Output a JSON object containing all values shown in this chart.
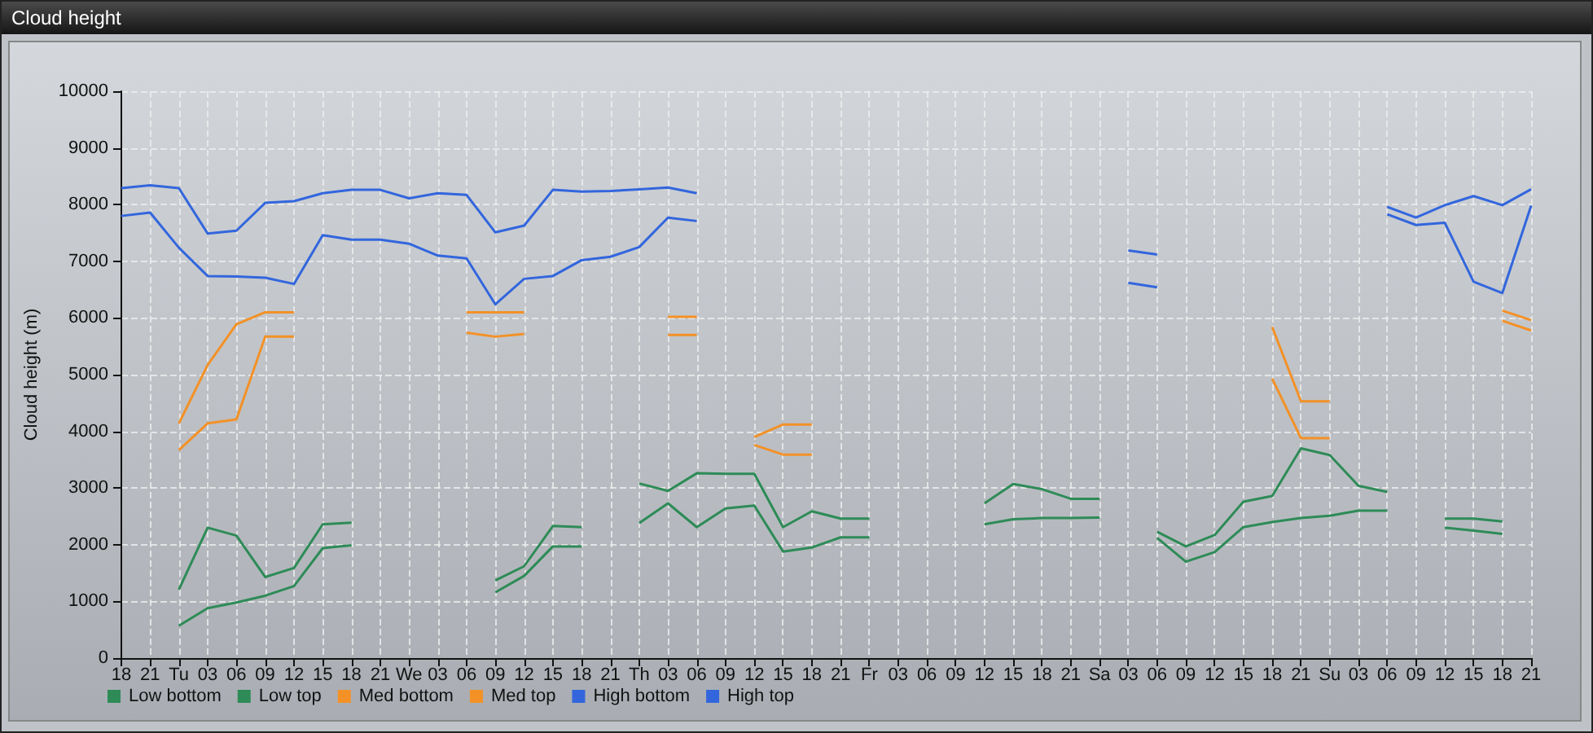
{
  "chart_data": {
    "type": "line",
    "title": "Cloud height",
    "ylabel": "Cloud height (m)",
    "categories": [
      "18",
      "21",
      "Tu",
      "03",
      "06",
      "09",
      "12",
      "15",
      "18",
      "21",
      "We",
      "03",
      "06",
      "09",
      "12",
      "15",
      "18",
      "21",
      "Th",
      "03",
      "06",
      "09",
      "12",
      "15",
      "18",
      "21",
      "Fr",
      "03",
      "06",
      "09",
      "12",
      "15",
      "18",
      "21",
      "Sa",
      "03",
      "06",
      "09",
      "12",
      "15",
      "18",
      "21",
      "Su",
      "03",
      "06",
      "09",
      "12",
      "15",
      "18",
      "21"
    ],
    "series": [
      {
        "name": "Low bottom",
        "color": "#2e8b57",
        "values": [
          null,
          null,
          570,
          880,
          980,
          1100,
          1270,
          1940,
          1990,
          null,
          null,
          null,
          null,
          1160,
          1450,
          1970,
          1970,
          null,
          2380,
          2730,
          2310,
          2640,
          2690,
          1880,
          1950,
          2130,
          2130,
          null,
          null,
          null,
          2360,
          2450,
          2470,
          2470,
          2480,
          null,
          2120,
          1700,
          1870,
          2310,
          2400,
          2470,
          2510,
          2600,
          2600,
          null,
          2300,
          2250,
          2190,
          null
        ]
      },
      {
        "name": "Low top",
        "color": "#2e8b57",
        "values": [
          null,
          null,
          1210,
          2300,
          2160,
          1430,
          1590,
          2360,
          2390,
          null,
          null,
          null,
          null,
          1370,
          1620,
          2330,
          2310,
          null,
          3080,
          2950,
          3260,
          3250,
          3250,
          2310,
          2590,
          2460,
          2460,
          null,
          null,
          null,
          2730,
          3070,
          2980,
          2810,
          2810,
          null,
          2230,
          1970,
          2170,
          2760,
          2860,
          3700,
          3580,
          3040,
          2930,
          null,
          2460,
          2460,
          2410,
          null
        ]
      },
      {
        "name": "Med bottom",
        "color": "#f39127",
        "values": [
          null,
          null,
          3670,
          4140,
          4210,
          5670,
          5670,
          null,
          null,
          null,
          null,
          null,
          5740,
          5670,
          5720,
          null,
          null,
          null,
          null,
          5700,
          5700,
          null,
          3760,
          3590,
          3590,
          null,
          null,
          null,
          null,
          null,
          null,
          null,
          null,
          null,
          null,
          null,
          null,
          null,
          null,
          null,
          4930,
          3880,
          3880,
          null,
          null,
          null,
          null,
          null,
          5950,
          5780
        ]
      },
      {
        "name": "Med top",
        "color": "#f39127",
        "values": [
          null,
          null,
          4140,
          5170,
          5890,
          6100,
          6100,
          null,
          null,
          null,
          null,
          null,
          6100,
          6100,
          6100,
          null,
          null,
          null,
          null,
          6020,
          6020,
          null,
          3900,
          4120,
          4120,
          null,
          null,
          null,
          null,
          null,
          null,
          null,
          null,
          null,
          null,
          null,
          null,
          null,
          null,
          null,
          5840,
          4530,
          4530,
          null,
          null,
          null,
          null,
          null,
          6130,
          5960
        ]
      },
      {
        "name": "High bottom",
        "color": "#3366dd",
        "values": [
          7800,
          7860,
          7240,
          6740,
          6730,
          6710,
          6600,
          7460,
          7380,
          7380,
          7310,
          7100,
          7050,
          6240,
          6690,
          6740,
          7020,
          7080,
          7250,
          7770,
          7710,
          null,
          null,
          null,
          null,
          null,
          null,
          null,
          null,
          null,
          null,
          null,
          null,
          null,
          null,
          6620,
          6540,
          null,
          null,
          null,
          null,
          null,
          null,
          null,
          7830,
          7640,
          7680,
          6640,
          6440,
          7980
        ]
      },
      {
        "name": "High top",
        "color": "#3366dd",
        "values": [
          8290,
          8340,
          8290,
          7490,
          7540,
          8030,
          8060,
          8200,
          8260,
          8260,
          8110,
          8200,
          8170,
          7510,
          7630,
          8260,
          8230,
          8240,
          8270,
          8300,
          8200,
          null,
          null,
          null,
          null,
          null,
          null,
          null,
          null,
          null,
          null,
          null,
          null,
          null,
          null,
          7190,
          7120,
          null,
          null,
          null,
          null,
          null,
          null,
          null,
          7960,
          7770,
          7990,
          8150,
          7990,
          8270
        ]
      }
    ],
    "ylim": [
      0,
      10000
    ],
    "yticks": [
      0,
      1000,
      2000,
      3000,
      4000,
      5000,
      6000,
      7000,
      8000,
      9000,
      10000
    ],
    "grid": true,
    "legend": "bottom left",
    "marker": "none"
  }
}
